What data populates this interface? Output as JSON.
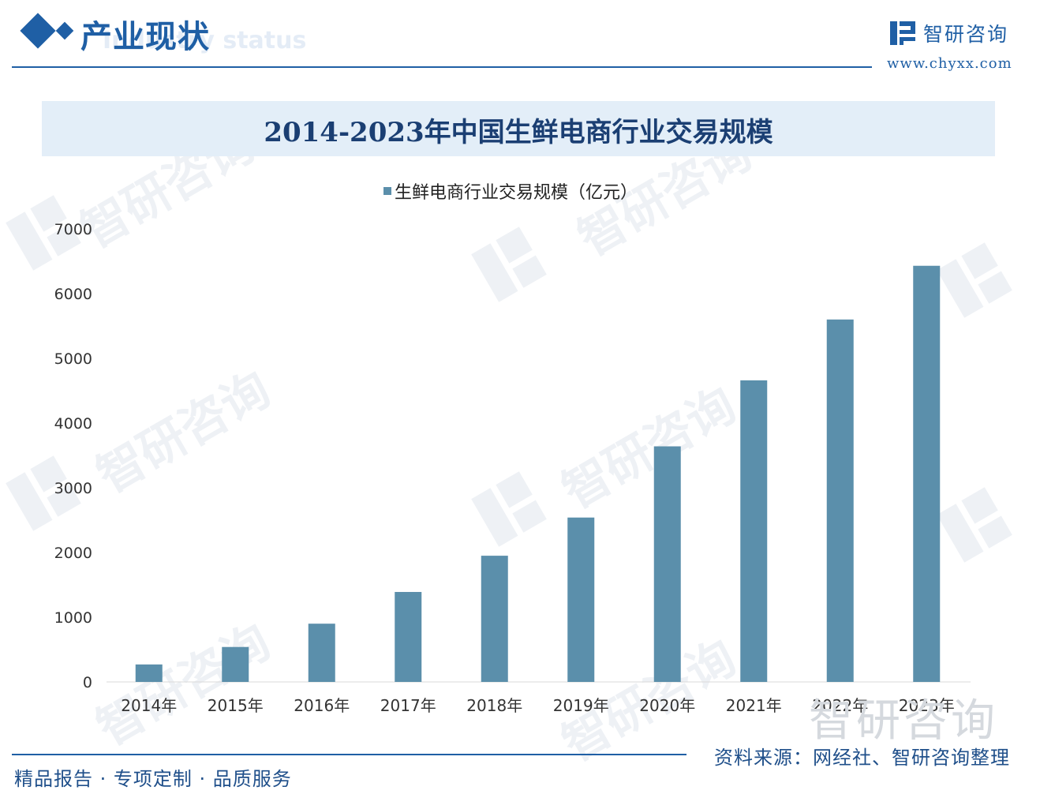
{
  "header": {
    "section_title": "产业现状",
    "section_subtitle": "Industry status",
    "brand_name": "智研咨询",
    "brand_url": "www.chyxx.com"
  },
  "chart_title": "2014-2023年中国生鲜电商行业交易规模",
  "chart_data": {
    "type": "bar",
    "title": "2014-2023年中国生鲜电商行业交易规模",
    "categories": [
      "2014年",
      "2015年",
      "2016年",
      "2017年",
      "2018年",
      "2019年",
      "2020年",
      "2021年",
      "2022年",
      "2023年"
    ],
    "series": [
      {
        "name": "生鲜电商行业交易规模（亿元）",
        "values": [
          270,
          540,
          900,
          1390,
          1950,
          2540,
          3640,
          4660,
          5600,
          6430
        ]
      }
    ],
    "y_ticks": [
      0,
      1000,
      2000,
      3000,
      4000,
      5000,
      6000,
      7000
    ],
    "ylim": [
      0,
      7000
    ],
    "grid": false,
    "legend_position": "top-center",
    "color": "#5b8fab"
  },
  "watermark_text": "智研咨询",
  "footer": {
    "slogan": "精品报告 · 专项定制 · 品质服务",
    "source": "资料来源：网经社、智研咨询整理"
  }
}
